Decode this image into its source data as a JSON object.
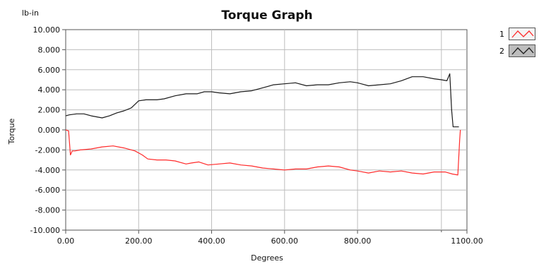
{
  "chart_data": {
    "type": "line",
    "title": "Torque Graph",
    "xlabel": "Degrees",
    "ylabel": "Torque",
    "yunit": "lb-in",
    "xlim": [
      0,
      1100
    ],
    "ylim": [
      -10,
      10
    ],
    "x_ticks": [
      "0.00",
      "200.00",
      "400.00",
      "600.00",
      "800.00",
      "1100.00"
    ],
    "x_tick_values": [
      0,
      200,
      400,
      600,
      800,
      1100
    ],
    "y_ticks": [
      "10.000",
      "8.000",
      "6.000",
      "4.000",
      "2.000",
      "0.000",
      "-2.000",
      "-4.000",
      "-6.000",
      "-8.000",
      "-10.000"
    ],
    "y_tick_values": [
      10,
      8,
      6,
      4,
      2,
      0,
      -2,
      -4,
      -6,
      -8,
      -10
    ],
    "minor_x_gridline": 1030,
    "grid": true,
    "legend_position": "right",
    "series": [
      {
        "name": "1",
        "color": "#ff2a2a",
        "x": [
          0,
          8,
          13,
          18,
          25,
          40,
          70,
          100,
          130,
          160,
          190,
          210,
          225,
          250,
          275,
          300,
          330,
          345,
          365,
          390,
          420,
          450,
          480,
          510,
          540,
          570,
          600,
          630,
          660,
          690,
          720,
          750,
          780,
          800,
          830,
          860,
          890,
          920,
          950,
          980,
          1010,
          1040,
          1060,
          1075,
          1080,
          1082
        ],
        "values": [
          0.0,
          -0.1,
          -2.5,
          -2.1,
          -2.1,
          -2.0,
          -1.9,
          -1.7,
          -1.6,
          -1.8,
          -2.1,
          -2.5,
          -2.9,
          -3.0,
          -3.0,
          -3.1,
          -3.4,
          -3.3,
          -3.2,
          -3.5,
          -3.4,
          -3.3,
          -3.5,
          -3.6,
          -3.8,
          -3.9,
          -4.0,
          -3.9,
          -3.9,
          -3.7,
          -3.6,
          -3.7,
          -4.0,
          -4.1,
          -4.3,
          -4.1,
          -4.2,
          -4.1,
          -4.3,
          -4.4,
          -4.2,
          -4.2,
          -4.4,
          -4.5,
          -1.0,
          0.0
        ]
      },
      {
        "name": "2",
        "color": "#1a1a1a",
        "x": [
          0,
          10,
          30,
          50,
          70,
          100,
          120,
          140,
          160,
          180,
          200,
          220,
          250,
          270,
          300,
          330,
          360,
          380,
          400,
          420,
          450,
          480,
          510,
          540,
          570,
          600,
          630,
          660,
          690,
          720,
          750,
          780,
          800,
          830,
          860,
          890,
          920,
          950,
          980,
          1010,
          1030,
          1045,
          1053,
          1058,
          1062,
          1070,
          1078
        ],
        "values": [
          1.4,
          1.5,
          1.6,
          1.6,
          1.4,
          1.2,
          1.4,
          1.7,
          1.9,
          2.2,
          2.9,
          3.0,
          3.0,
          3.1,
          3.4,
          3.6,
          3.6,
          3.8,
          3.8,
          3.7,
          3.6,
          3.8,
          3.9,
          4.2,
          4.5,
          4.6,
          4.7,
          4.4,
          4.5,
          4.5,
          4.7,
          4.8,
          4.7,
          4.4,
          4.5,
          4.6,
          4.9,
          5.3,
          5.3,
          5.1,
          5.0,
          4.9,
          5.6,
          2.0,
          0.3,
          0.3,
          0.3
        ]
      }
    ]
  }
}
